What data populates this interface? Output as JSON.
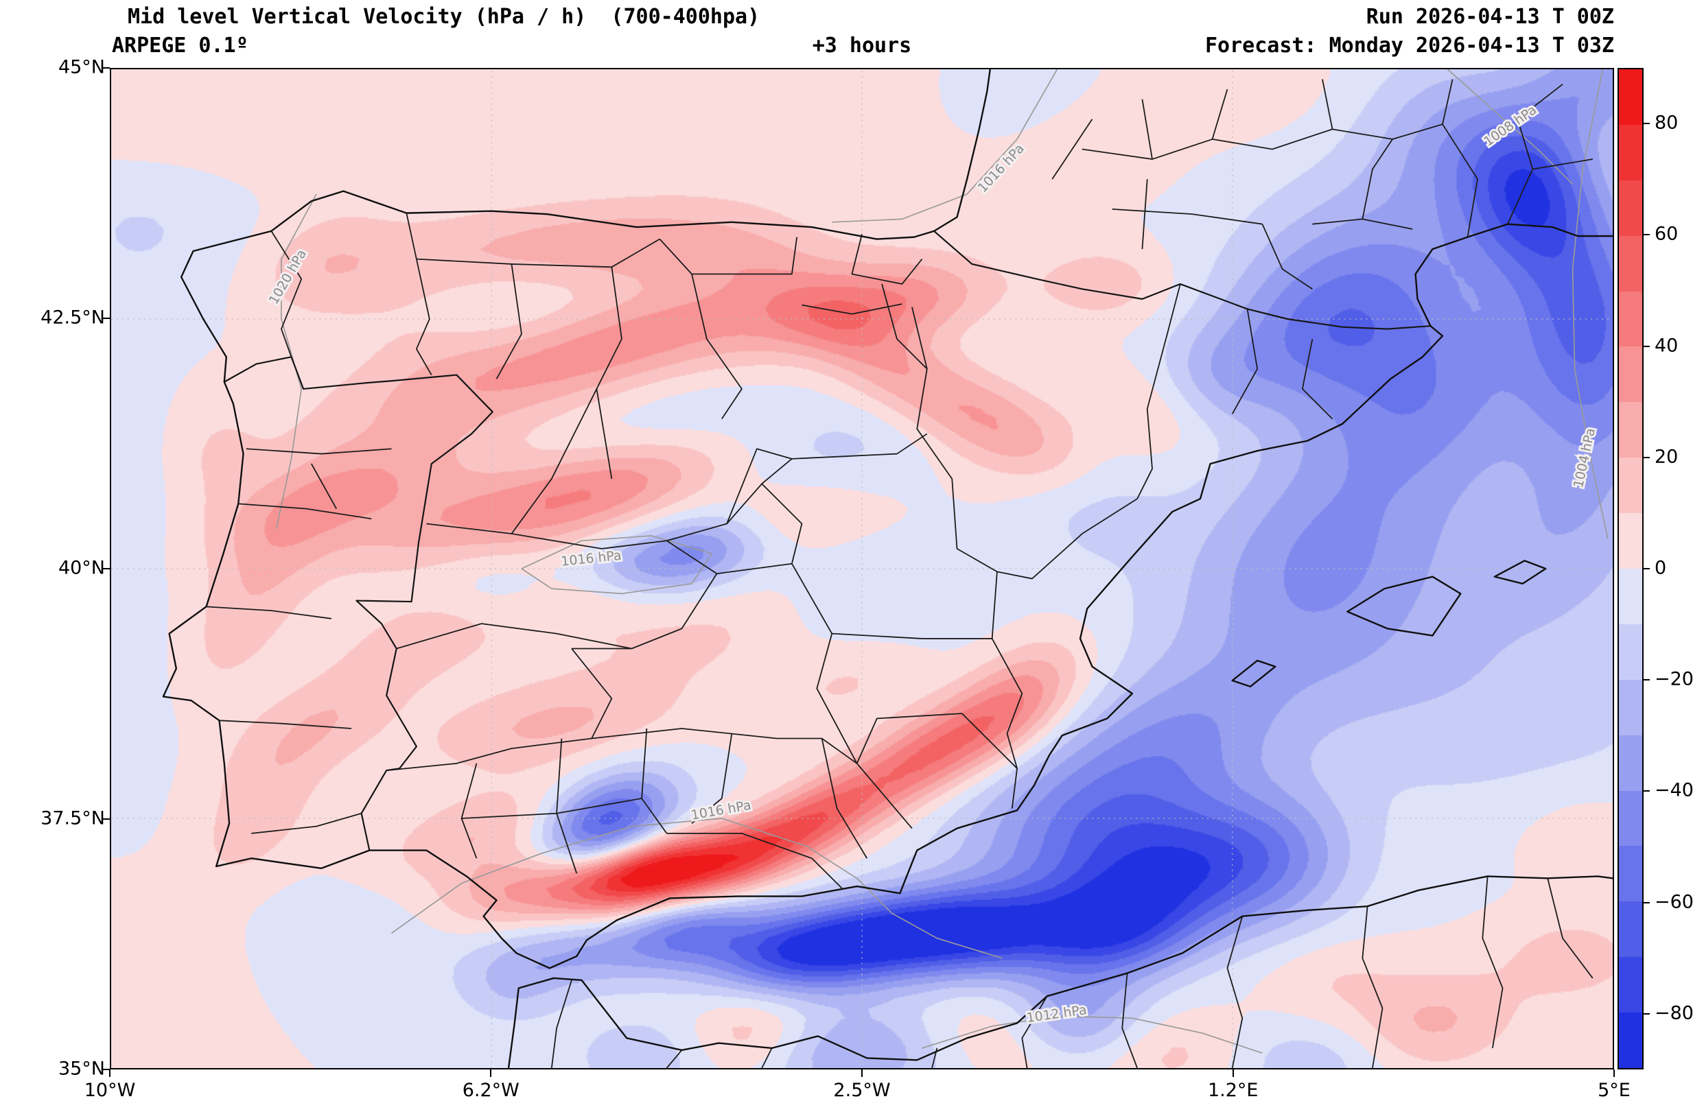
{
  "header": {
    "title": "Mid level Vertical Velocity (hPa / h)  (700-400hpa)",
    "model": "ARPEGE 0.1º",
    "step": "+3 hours",
    "run": "Run 2026-04-13 T 00Z",
    "forecast": "Forecast: Monday 2026-04-13 T 03Z"
  },
  "chart_data": {
    "type": "heatmap",
    "title": "Mid level Vertical Velocity (hPa / h)  (700-400hpa)",
    "variable": "Mid level Vertical Velocity",
    "units": "hPa / h",
    "layer": "700-400hpa",
    "model": "ARPEGE 0.1º",
    "run": "2026-04-13 T 00Z",
    "step": "+3 hours",
    "forecast_valid": "Monday 2026-04-13 T 03Z",
    "extent": {
      "lon_min": -10,
      "lon_max": 5,
      "lat_min": 35,
      "lat_max": 45
    },
    "xticks": [
      {
        "label": "10°W",
        "lon": -10
      },
      {
        "label": "6.2°W",
        "lon": -6.2
      },
      {
        "label": "2.5°W",
        "lon": -2.5
      },
      {
        "label": "1.2°E",
        "lon": 1.2
      },
      {
        "label": "5°E",
        "lon": 5
      }
    ],
    "yticks": [
      {
        "label": "45°N",
        "lat": 45
      },
      {
        "label": "42.5°N",
        "lat": 42.5
      },
      {
        "label": "40°N",
        "lat": 40
      },
      {
        "label": "37.5°N",
        "lat": 37.5
      },
      {
        "label": "35°N",
        "lat": 35
      }
    ],
    "gridlines": {
      "lons": [
        -6.2,
        -2.5,
        1.2
      ],
      "lats": [
        42.5,
        40,
        37.5
      ]
    },
    "colorbar": {
      "min": -90,
      "max": 90,
      "band_step": 10,
      "tick_values": [
        80,
        60,
        40,
        20,
        0,
        -20,
        -40,
        -60,
        -80
      ],
      "tick_labels": [
        "80",
        "60",
        "40",
        "20",
        "0",
        "−20",
        "−40",
        "−60",
        "−80"
      ]
    },
    "isobar_labels": [
      {
        "text": "1016 hPa",
        "lon": -1.08,
        "lat": 43.98,
        "rot": -47
      },
      {
        "text": "1020 hPa",
        "lon": -8.2,
        "lat": 42.9,
        "rot": -60
      },
      {
        "text": "1016 hPa",
        "lon": -5.2,
        "lat": 40.06,
        "rot": -6
      },
      {
        "text": "1016 hPa",
        "lon": -3.9,
        "lat": 37.54,
        "rot": -10
      },
      {
        "text": "1004 hPa",
        "lon": 4.76,
        "lat": 41.1,
        "rot": -78
      },
      {
        "text": "1012 hPa",
        "lon": -0.55,
        "lat": 35.5,
        "rot": -8
      },
      {
        "text": "1008 hPa",
        "lon": 4.0,
        "lat": 44.4,
        "rot": -35
      }
    ],
    "velocity_centers_format": [
      "lon",
      "lat",
      "value_hPa_per_h",
      "sigma_lon_deg",
      "sigma_lat_deg",
      "rotation_deg"
    ],
    "velocity_centers": [
      [
        -5.6,
        43.25,
        22,
        1.3,
        0.3,
        5
      ],
      [
        -7.9,
        43.05,
        14,
        0.5,
        0.35,
        30
      ],
      [
        -4.1,
        43.15,
        16,
        0.8,
        0.25,
        0
      ],
      [
        -6.3,
        41.9,
        24,
        1.2,
        0.35,
        15
      ],
      [
        -4.6,
        42.35,
        26,
        1.0,
        0.3,
        18
      ],
      [
        -3.0,
        42.55,
        24,
        0.8,
        0.3,
        15
      ],
      [
        -2.0,
        42.68,
        26,
        0.6,
        0.28,
        10
      ],
      [
        -7.6,
        40.8,
        26,
        0.9,
        0.3,
        20
      ],
      [
        -6.2,
        40.55,
        30,
        1.1,
        0.32,
        12
      ],
      [
        -4.9,
        40.85,
        24,
        0.8,
        0.28,
        18
      ],
      [
        -8.55,
        39.8,
        18,
        0.9,
        0.35,
        60
      ],
      [
        -8.0,
        38.4,
        20,
        0.7,
        0.3,
        30
      ],
      [
        -8.55,
        37.45,
        16,
        0.5,
        0.3,
        45
      ],
      [
        -5.6,
        38.45,
        22,
        0.9,
        0.3,
        10
      ],
      [
        -6.9,
        39.3,
        14,
        0.6,
        0.3,
        20
      ],
      [
        -6.3,
        37.35,
        20,
        0.7,
        0.28,
        15
      ],
      [
        -5.8,
        36.8,
        32,
        0.6,
        0.25,
        10
      ],
      [
        -4.6,
        36.95,
        95,
        0.6,
        0.23,
        12
      ],
      [
        -3.55,
        37.2,
        50,
        0.5,
        0.22,
        25
      ],
      [
        -2.85,
        37.55,
        38,
        0.45,
        0.25,
        30
      ],
      [
        -2.1,
        37.95,
        34,
        0.5,
        0.25,
        30
      ],
      [
        -1.4,
        38.35,
        38,
        0.55,
        0.28,
        25
      ],
      [
        -0.85,
        38.8,
        26,
        0.5,
        0.3,
        35
      ],
      [
        -2.2,
        42.0,
        28,
        0.9,
        0.3,
        -35
      ],
      [
        -1.0,
        41.4,
        22,
        0.6,
        0.28,
        -30
      ],
      [
        -0.1,
        42.85,
        18,
        0.45,
        0.25,
        0
      ],
      [
        0.3,
        41.55,
        12,
        0.5,
        0.3,
        -20
      ],
      [
        -3.2,
        40.55,
        12,
        0.6,
        0.25,
        10
      ],
      [
        -2.6,
        38.9,
        12,
        0.6,
        0.3,
        20
      ],
      [
        -9.6,
        44.4,
        9,
        0.8,
        0.5,
        0
      ],
      [
        -7.5,
        44.6,
        8,
        0.9,
        0.5,
        0
      ],
      [
        -3.5,
        44.55,
        8,
        1.2,
        0.6,
        0
      ],
      [
        -9.7,
        36.0,
        8,
        0.8,
        0.5,
        0
      ],
      [
        -3.6,
        35.35,
        22,
        0.45,
        0.3,
        10
      ],
      [
        -1.1,
        35.35,
        16,
        0.5,
        0.3,
        0
      ],
      [
        0.6,
        35.15,
        14,
        0.5,
        0.3,
        0
      ],
      [
        3.2,
        35.45,
        22,
        0.6,
        0.35,
        10
      ],
      [
        4.6,
        36.1,
        16,
        0.5,
        0.3,
        0
      ],
      [
        2.2,
        35.9,
        10,
        0.5,
        0.3,
        0
      ],
      [
        4.7,
        37.4,
        10,
        0.6,
        0.4,
        0
      ],
      [
        -0.5,
        44.35,
        9,
        0.7,
        0.4,
        0
      ],
      [
        1.3,
        44.85,
        8,
        0.6,
        0.35,
        0
      ],
      [
        -9.0,
        41.1,
        12,
        0.4,
        0.5,
        0
      ],
      [
        -7.0,
        42.6,
        10,
        0.6,
        0.4,
        0
      ],
      [
        -5.3,
        39.6,
        12,
        0.8,
        0.35,
        10
      ],
      [
        -4.0,
        39.3,
        10,
        0.7,
        0.3,
        15
      ],
      [
        2.55,
        42.7,
        -42,
        0.9,
        0.8,
        15
      ],
      [
        1.9,
        42.3,
        -22,
        0.7,
        0.5,
        20
      ],
      [
        3.4,
        44.3,
        -28,
        0.6,
        0.6,
        0
      ],
      [
        4.15,
        43.8,
        -62,
        0.45,
        0.55,
        0
      ],
      [
        4.6,
        42.9,
        -30,
        0.5,
        0.7,
        0
      ],
      [
        4.9,
        44.9,
        -35,
        0.5,
        0.4,
        0
      ],
      [
        3.2,
        41.6,
        -30,
        0.8,
        0.6,
        30
      ],
      [
        2.2,
        40.4,
        -25,
        0.9,
        0.7,
        20
      ],
      [
        1.8,
        39.5,
        -18,
        1.1,
        0.8,
        0
      ],
      [
        4.8,
        41.3,
        -22,
        0.6,
        0.9,
        0
      ],
      [
        4.3,
        40.2,
        -14,
        0.7,
        0.6,
        0
      ],
      [
        0.6,
        38.3,
        -28,
        0.8,
        0.5,
        20
      ],
      [
        -0.3,
        37.4,
        -45,
        0.9,
        0.55,
        15
      ],
      [
        0.6,
        36.9,
        -55,
        0.7,
        0.45,
        10
      ],
      [
        1.6,
        37.1,
        -35,
        0.6,
        0.5,
        0
      ],
      [
        -0.1,
        36.35,
        -60,
        0.6,
        0.35,
        5
      ],
      [
        -2.35,
        36.3,
        -80,
        0.75,
        0.3,
        8
      ],
      [
        -1.3,
        36.35,
        -55,
        0.6,
        0.3,
        5
      ],
      [
        -3.3,
        36.15,
        -45,
        0.6,
        0.28,
        5
      ],
      [
        -4.3,
        36.35,
        -45,
        0.5,
        0.25,
        10
      ],
      [
        -5.05,
        37.45,
        -70,
        0.5,
        0.3,
        25
      ],
      [
        -5.35,
        36.15,
        -25,
        0.5,
        0.25,
        0
      ],
      [
        -6.0,
        35.85,
        -20,
        0.4,
        0.3,
        0
      ],
      [
        -4.2,
        40.15,
        -45,
        0.5,
        0.25,
        12
      ],
      [
        -4.9,
        40.05,
        -15,
        0.4,
        0.25,
        0
      ],
      [
        -2.6,
        35.15,
        -30,
        0.7,
        0.35,
        0
      ],
      [
        -4.7,
        35.1,
        -18,
        0.5,
        0.3,
        0
      ],
      [
        2.0,
        35.05,
        -18,
        0.6,
        0.3,
        0
      ],
      [
        -0.4,
        35.5,
        -32,
        0.5,
        0.3,
        0
      ],
      [
        -9.7,
        43.5,
        -12,
        0.7,
        0.6,
        0
      ],
      [
        -9.9,
        41.0,
        -8,
        0.6,
        0.8,
        0
      ],
      [
        -9.9,
        38.6,
        -8,
        0.5,
        0.7,
        0
      ],
      [
        -7.6,
        36.2,
        -10,
        0.7,
        0.4,
        0
      ],
      [
        -0.9,
        44.62,
        -10,
        0.6,
        0.4,
        0
      ],
      [
        -4.3,
        41.45,
        -10,
        0.8,
        0.3,
        10
      ],
      [
        -2.7,
        41.2,
        -12,
        0.7,
        0.35,
        10
      ],
      [
        -6.3,
        42.6,
        -8,
        0.7,
        0.3,
        0
      ],
      [
        -2.3,
        39.6,
        -10,
        0.7,
        0.4,
        0
      ],
      [
        -6.15,
        39.85,
        -12,
        0.5,
        0.3,
        0
      ],
      [
        -0.2,
        40.6,
        -12,
        0.5,
        0.4,
        0
      ],
      [
        1.05,
        41.95,
        -15,
        0.4,
        0.35,
        0
      ],
      [
        3.0,
        39.0,
        -12,
        1.5,
        1.0,
        0
      ],
      [
        4.5,
        38.3,
        -8,
        1.0,
        0.8,
        0
      ],
      [
        4.9,
        42.3,
        -28,
        0.5,
        0.8,
        0
      ]
    ]
  },
  "colors": {
    "positive_max": "#ed1b1b",
    "negative_max": "#2031e2",
    "zero_positive": "#fcebeb",
    "zero_negative": "#e9edfa",
    "border": "#111111",
    "isobar": "#9a9a9a",
    "gridline": "#bdbdbd"
  }
}
